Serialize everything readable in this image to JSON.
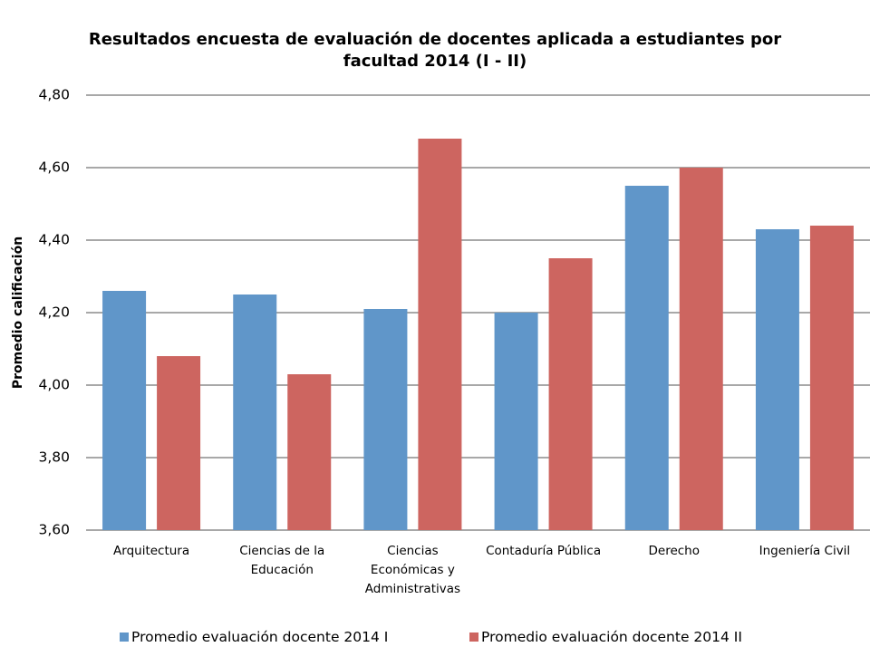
{
  "chart_data": {
    "type": "bar",
    "title": "Resultados encuesta de evaluación de docentes aplicada a estudiantes por facultad 2014 (I - II)",
    "y_label": "Promedio calificación",
    "categories": [
      "Arquitectura",
      "Ciencias de la Educación",
      "Ciencias Económicas y Administrativas",
      "Contaduría Pública",
      "Derecho",
      "Ingeniería Civil"
    ],
    "series": [
      {
        "name": "Promedio evaluación docente 2014 I",
        "color": "#6096c9",
        "values": [
          4.26,
          4.25,
          4.21,
          4.2,
          4.55,
          4.43
        ]
      },
      {
        "name": "Promedio evaluación docente 2014 II",
        "color": "#cd6560",
        "values": [
          4.08,
          4.03,
          4.68,
          4.35,
          4.6,
          4.44
        ]
      }
    ],
    "ylim": [
      3.6,
      4.8
    ],
    "yticks": [
      {
        "value": 3.6,
        "label": "3,60"
      },
      {
        "value": 3.8,
        "label": "3,80"
      },
      {
        "value": 4.0,
        "label": "4,00"
      },
      {
        "value": 4.2,
        "label": "4,20"
      },
      {
        "value": 4.4,
        "label": "4,40"
      },
      {
        "value": 4.6,
        "label": "4,60"
      },
      {
        "value": 4.8,
        "label": "4,80"
      }
    ],
    "grid": true,
    "legend": "bottom"
  }
}
